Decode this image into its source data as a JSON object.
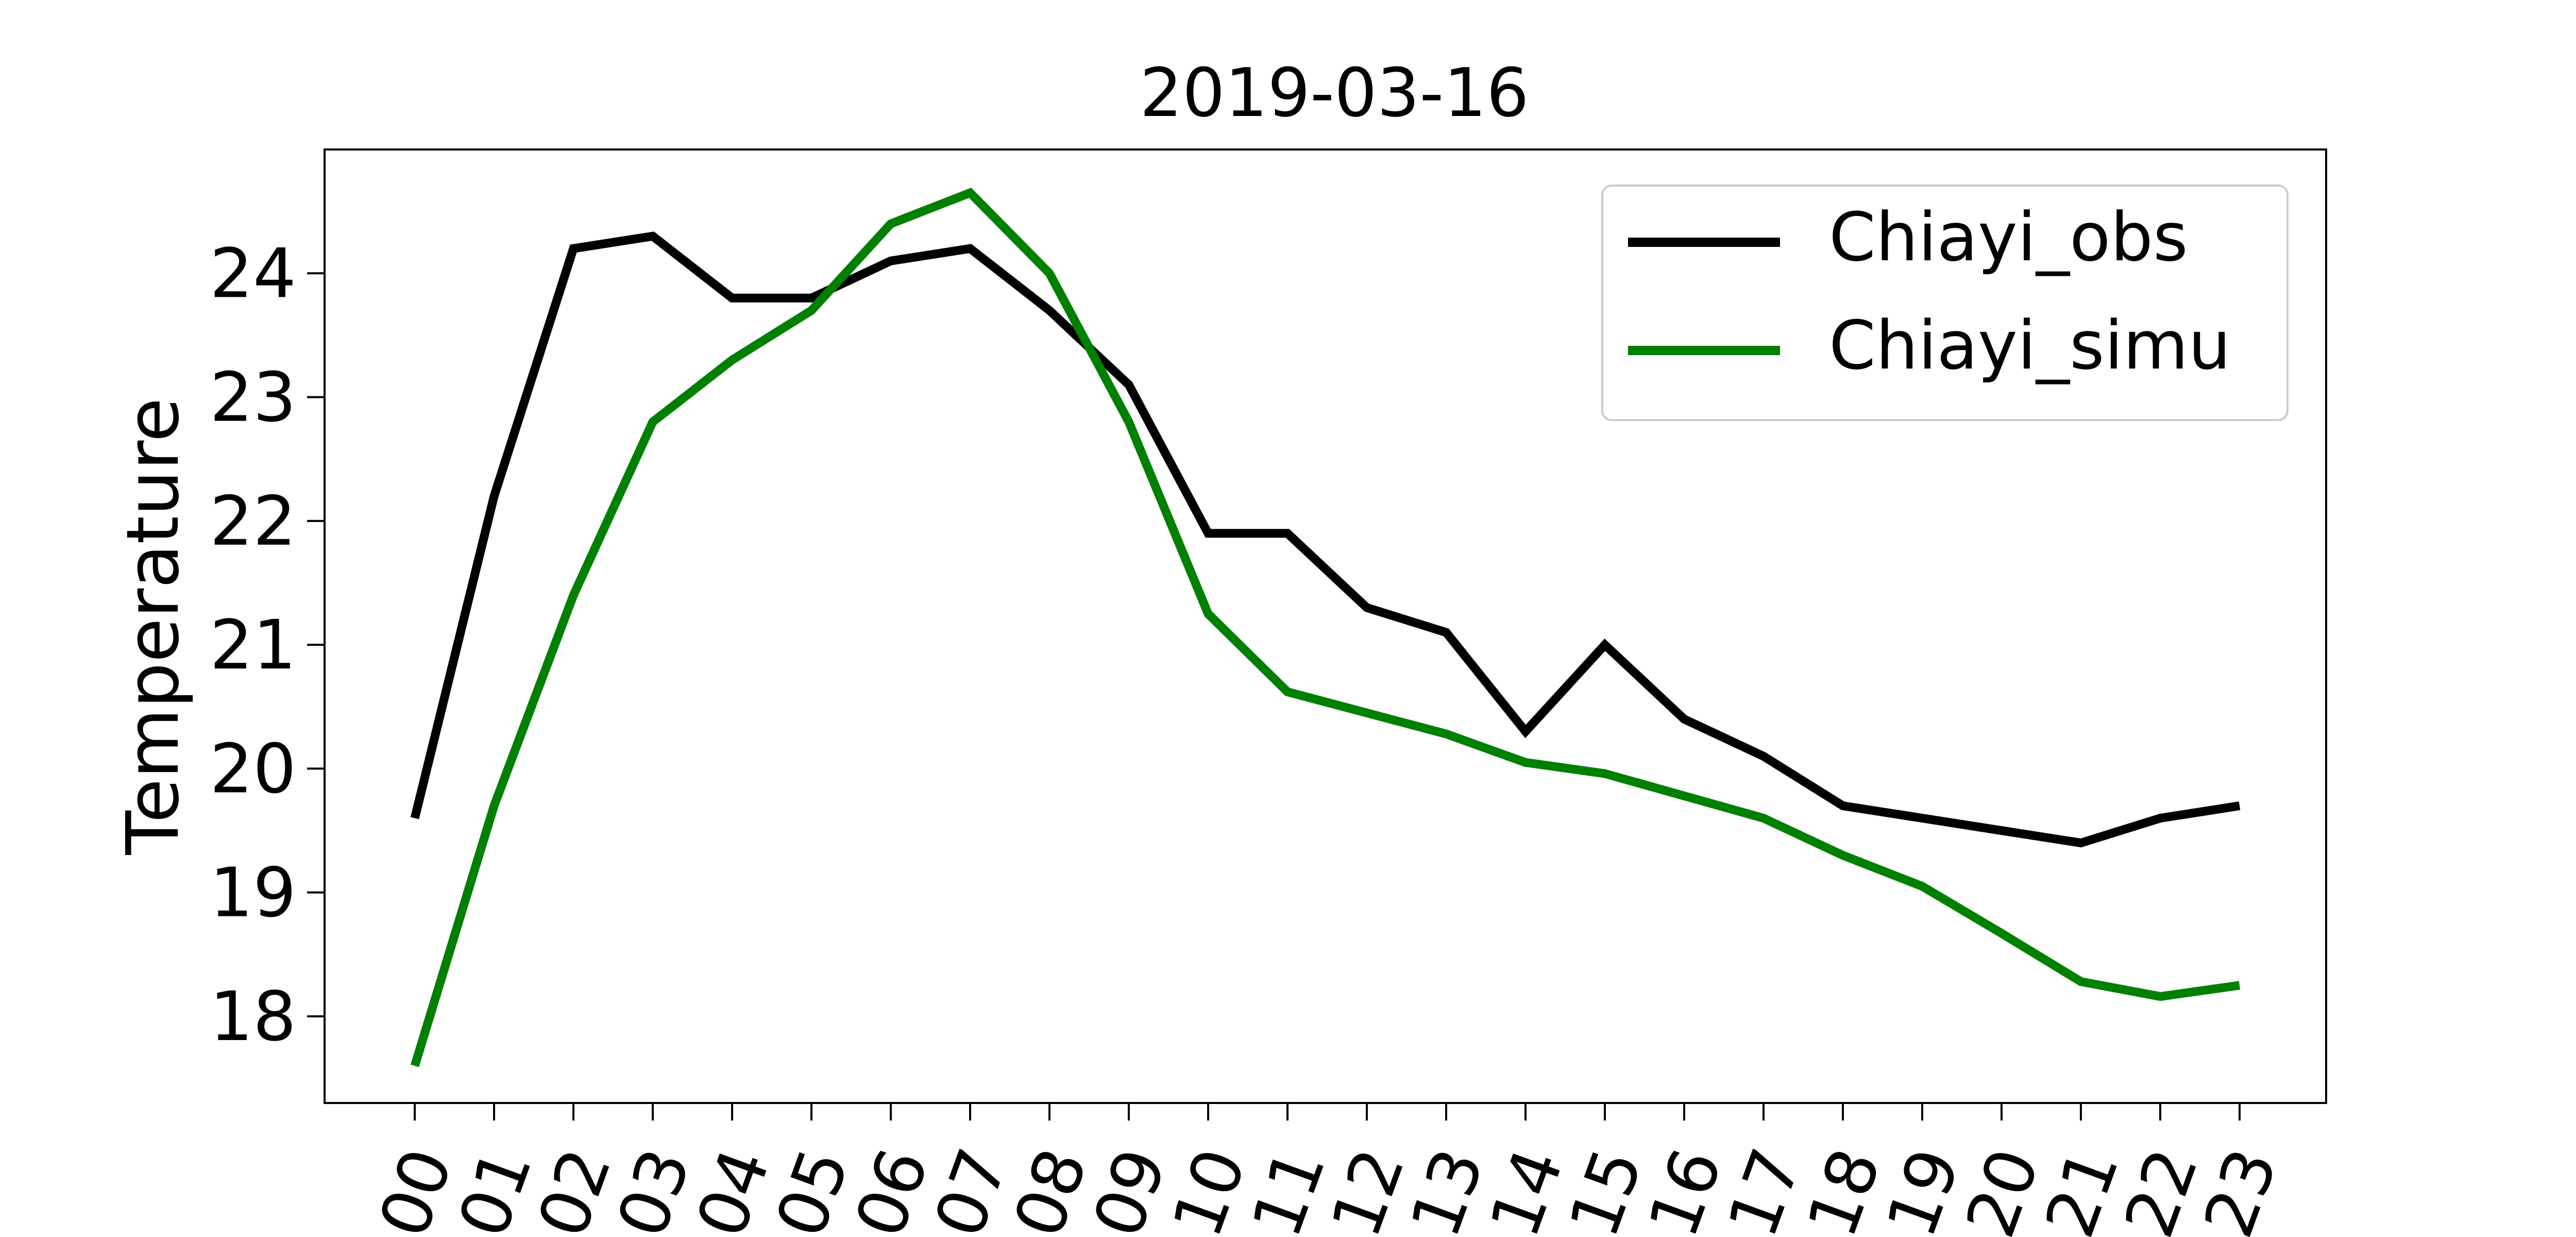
{
  "chart_data": {
    "type": "line",
    "title": "2019-03-16",
    "xlabel": "",
    "ylabel": "Temperature",
    "categories": [
      "00",
      "01",
      "02",
      "03",
      "04",
      "05",
      "06",
      "07",
      "08",
      "09",
      "10",
      "11",
      "12",
      "13",
      "14",
      "15",
      "16",
      "17",
      "18",
      "19",
      "20",
      "21",
      "22",
      "23"
    ],
    "yticks": [
      18,
      19,
      20,
      21,
      22,
      23,
      24
    ],
    "ylim": [
      17.3,
      25.0
    ],
    "grid": false,
    "legend_position": "top-right",
    "series": [
      {
        "name": "Chiayi_obs",
        "color": "#000000",
        "values": [
          19.6,
          22.2,
          24.2,
          24.3,
          23.8,
          23.8,
          24.1,
          24.2,
          23.7,
          23.1,
          21.9,
          21.9,
          21.3,
          21.1,
          20.3,
          21.0,
          20.4,
          20.1,
          19.7,
          19.6,
          19.5,
          19.4,
          19.6,
          19.7
        ]
      },
      {
        "name": "Chiayi_simu",
        "color": "#008000",
        "values": [
          17.6,
          19.7,
          21.4,
          22.8,
          23.3,
          23.7,
          24.4,
          24.65,
          24.0,
          22.8,
          21.25,
          20.62,
          20.45,
          20.28,
          20.05,
          19.96,
          19.78,
          19.6,
          19.3,
          19.05,
          18.67,
          18.28,
          18.16,
          18.25
        ]
      }
    ]
  }
}
